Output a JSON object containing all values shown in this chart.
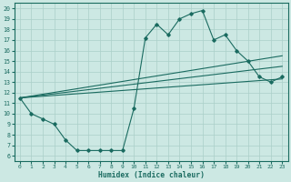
{
  "xlabel": "Humidex (Indice chaleur)",
  "bg_color": "#cce8e3",
  "grid_color": "#aacfc8",
  "line_color": "#1a6b60",
  "xlim": [
    -0.5,
    23.5
  ],
  "ylim": [
    5.5,
    20.5
  ],
  "xticks": [
    0,
    1,
    2,
    3,
    4,
    5,
    6,
    7,
    8,
    9,
    10,
    11,
    12,
    13,
    14,
    15,
    16,
    17,
    18,
    19,
    20,
    21,
    22,
    23
  ],
  "yticks": [
    6,
    7,
    8,
    9,
    10,
    11,
    12,
    13,
    14,
    15,
    16,
    17,
    18,
    19,
    20
  ],
  "main_x": [
    0,
    1,
    2,
    3,
    4,
    5,
    6,
    7,
    8,
    9,
    10,
    11,
    12,
    13,
    14,
    15,
    16,
    17,
    18,
    19,
    20,
    21,
    22,
    23
  ],
  "main_y": [
    11.5,
    10.0,
    9.5,
    9.0,
    7.5,
    6.5,
    6.5,
    6.5,
    6.5,
    6.5,
    10.5,
    17.2,
    18.5,
    17.5,
    19.0,
    19.5,
    19.8,
    17.0,
    17.5,
    16.0,
    15.0,
    13.5,
    13.0,
    13.5
  ],
  "trend1_x": [
    0,
    23
  ],
  "trend1_y": [
    11.5,
    13.3
  ],
  "trend2_x": [
    0,
    23
  ],
  "trend2_y": [
    11.5,
    14.5
  ],
  "trend3_x": [
    0,
    23
  ],
  "trend3_y": [
    11.5,
    15.5
  ]
}
